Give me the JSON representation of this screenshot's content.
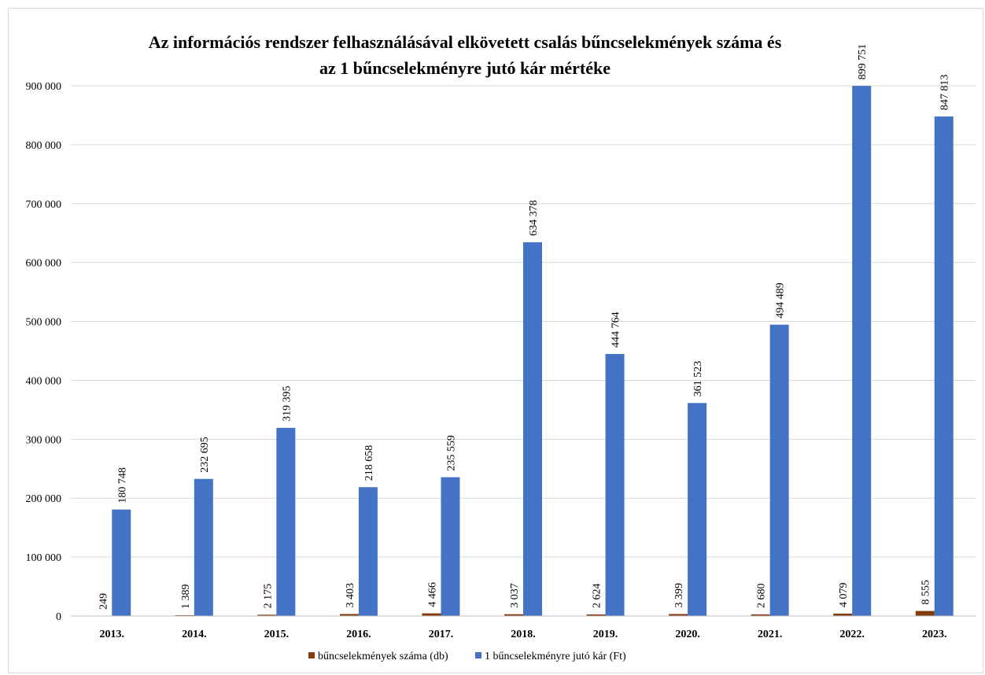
{
  "chart_data": {
    "type": "bar",
    "title": "Az információs rendszer felhasználásával elkövetett csalás bűncselekmények száma és az 1 bűncselekményre jutó kár mértéke",
    "title_lines": [
      "Az információs rendszer felhasználásával elkövetett csalás bűncselekmények száma és",
      "az 1 bűncselekményre jutó kár mértéke"
    ],
    "xlabel": "",
    "ylabel": "",
    "categories": [
      "2013.",
      "2014.",
      "2015.",
      "2016.",
      "2017.",
      "2018.",
      "2019.",
      "2020.",
      "2021.",
      "2022.",
      "2023."
    ],
    "series": [
      {
        "name": "bűncselekmények száma (db)",
        "color": "#843c0c",
        "values": [
          249,
          1389,
          2175,
          3403,
          4466,
          3037,
          2624,
          3399,
          2680,
          4079,
          8555
        ],
        "labels": [
          "249",
          "1 389",
          "2 175",
          "3 403",
          "4 466",
          "3 037",
          "2 624",
          "3 399",
          "2 680",
          "4 079",
          "8 555"
        ]
      },
      {
        "name": "1 bűncselekményre jutó kár (Ft)",
        "color": "#4472c4",
        "values": [
          180748,
          232695,
          319395,
          218658,
          235559,
          634378,
          444764,
          361523,
          494489,
          899751,
          847813
        ],
        "labels": [
          "180 748",
          "232 695",
          "319 395",
          "218 658",
          "235 559",
          "634 378",
          "444 764",
          "361 523",
          "494 489",
          "899 751",
          "847 813"
        ]
      }
    ],
    "ylim": [
      0,
      900000
    ],
    "yticks": [
      0,
      100000,
      200000,
      300000,
      400000,
      500000,
      600000,
      700000,
      800000,
      900000
    ],
    "ytick_labels": [
      "0",
      "100 000",
      "200 000",
      "300 000",
      "400 000",
      "500 000",
      "600 000",
      "700 000",
      "800 000",
      "900 000"
    ],
    "grid": true,
    "gridline_color": "#d9d9d9",
    "legend_position": "bottom"
  }
}
